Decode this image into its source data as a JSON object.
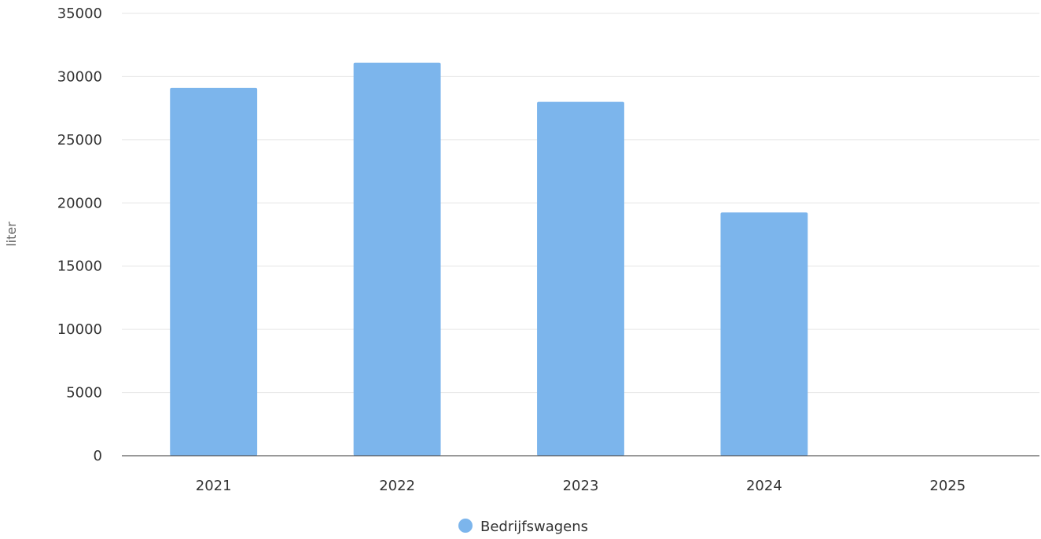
{
  "chart_data": {
    "type": "bar",
    "title": "",
    "xlabel": "",
    "ylabel": "liter",
    "categories": [
      "2021",
      "2022",
      "2023",
      "2024",
      "2025"
    ],
    "series": [
      {
        "name": "Bedrijfswagens",
        "color": "#7cb5ec",
        "values": [
          29100,
          31100,
          28000,
          19250,
          0
        ]
      }
    ],
    "ylim": [
      0,
      35000
    ],
    "yticks": [
      0,
      5000,
      10000,
      15000,
      20000,
      25000,
      30000,
      35000
    ],
    "grid": true,
    "legend_position": "bottom-center"
  }
}
